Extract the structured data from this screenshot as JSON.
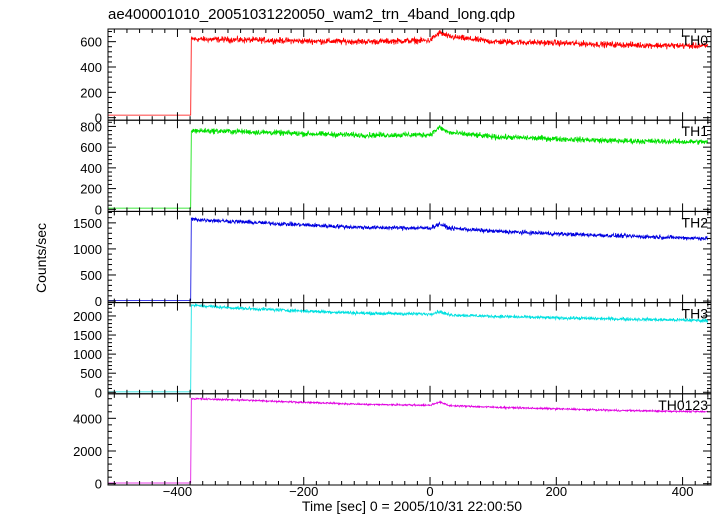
{
  "chart_data": {
    "type": "line",
    "title": "ae400001010_20051031220050_wam2_trn_4band_long.qdp",
    "xlabel": "Time [sec] 0 = 2005/10/31 22:00:50",
    "ylabel": "Counts/sec",
    "xlim": [
      -510,
      445
    ],
    "x_ticks": [
      -400,
      -200,
      0,
      200,
      400
    ],
    "data_x_range": [
      -510,
      440
    ],
    "panels": [
      {
        "name": "TH0",
        "color": "#ff0000",
        "ylim": [
          -20,
          700
        ],
        "y_ticks": [
          0,
          200,
          400,
          600
        ],
        "pre_level": 20,
        "points": [
          [
            -379,
            20
          ],
          [
            -378,
            620
          ],
          [
            -300,
            615
          ],
          [
            -200,
            605
          ],
          [
            -100,
            600
          ],
          [
            0,
            610
          ],
          [
            15,
            670
          ],
          [
            30,
            640
          ],
          [
            100,
            600
          ],
          [
            200,
            590
          ],
          [
            300,
            575
          ],
          [
            440,
            565
          ]
        ],
        "noise": 18
      },
      {
        "name": "TH1",
        "color": "#00e000",
        "ylim": [
          -20,
          860
        ],
        "y_ticks": [
          0,
          200,
          400,
          600,
          800
        ],
        "pre_level": 12,
        "points": [
          [
            -379,
            12
          ],
          [
            -378,
            760
          ],
          [
            -300,
            750
          ],
          [
            -200,
            730
          ],
          [
            -100,
            715
          ],
          [
            0,
            720
          ],
          [
            15,
            790
          ],
          [
            30,
            740
          ],
          [
            100,
            700
          ],
          [
            200,
            680
          ],
          [
            300,
            660
          ],
          [
            440,
            650
          ]
        ],
        "noise": 20
      },
      {
        "name": "TH2",
        "color": "#0000e0",
        "ylim": [
          -30,
          1720
        ],
        "y_ticks": [
          0,
          500,
          1000,
          1500
        ],
        "pre_level": 10,
        "points": [
          [
            -379,
            10
          ],
          [
            -378,
            1570
          ],
          [
            -300,
            1520
          ],
          [
            -200,
            1460
          ],
          [
            -100,
            1410
          ],
          [
            0,
            1400
          ],
          [
            15,
            1480
          ],
          [
            30,
            1400
          ],
          [
            100,
            1340
          ],
          [
            200,
            1290
          ],
          [
            300,
            1250
          ],
          [
            440,
            1200
          ]
        ],
        "noise": 30
      },
      {
        "name": "TH3",
        "color": "#00e0e0",
        "ylim": [
          -40,
          2350
        ],
        "y_ticks": [
          0,
          500,
          1000,
          1500,
          2000
        ],
        "pre_level": 10,
        "points": [
          [
            -379,
            10
          ],
          [
            -378,
            2280
          ],
          [
            -300,
            2200
          ],
          [
            -200,
            2130
          ],
          [
            -100,
            2070
          ],
          [
            0,
            2050
          ],
          [
            15,
            2120
          ],
          [
            30,
            2030
          ],
          [
            100,
            1990
          ],
          [
            200,
            1950
          ],
          [
            300,
            1920
          ],
          [
            440,
            1880
          ]
        ],
        "noise": 32
      },
      {
        "name": "TH0123",
        "color": "#e000e0",
        "ylim": [
          -80,
          5500
        ],
        "y_ticks": [
          0,
          2000,
          4000
        ],
        "pre_level": 40,
        "points": [
          [
            -379,
            40
          ],
          [
            -378,
            5200
          ],
          [
            -300,
            5120
          ],
          [
            -200,
            4980
          ],
          [
            -100,
            4850
          ],
          [
            0,
            4800
          ],
          [
            15,
            5000
          ],
          [
            30,
            4780
          ],
          [
            100,
            4680
          ],
          [
            200,
            4580
          ],
          [
            300,
            4480
          ],
          [
            440,
            4400
          ]
        ],
        "noise": 40
      }
    ]
  }
}
